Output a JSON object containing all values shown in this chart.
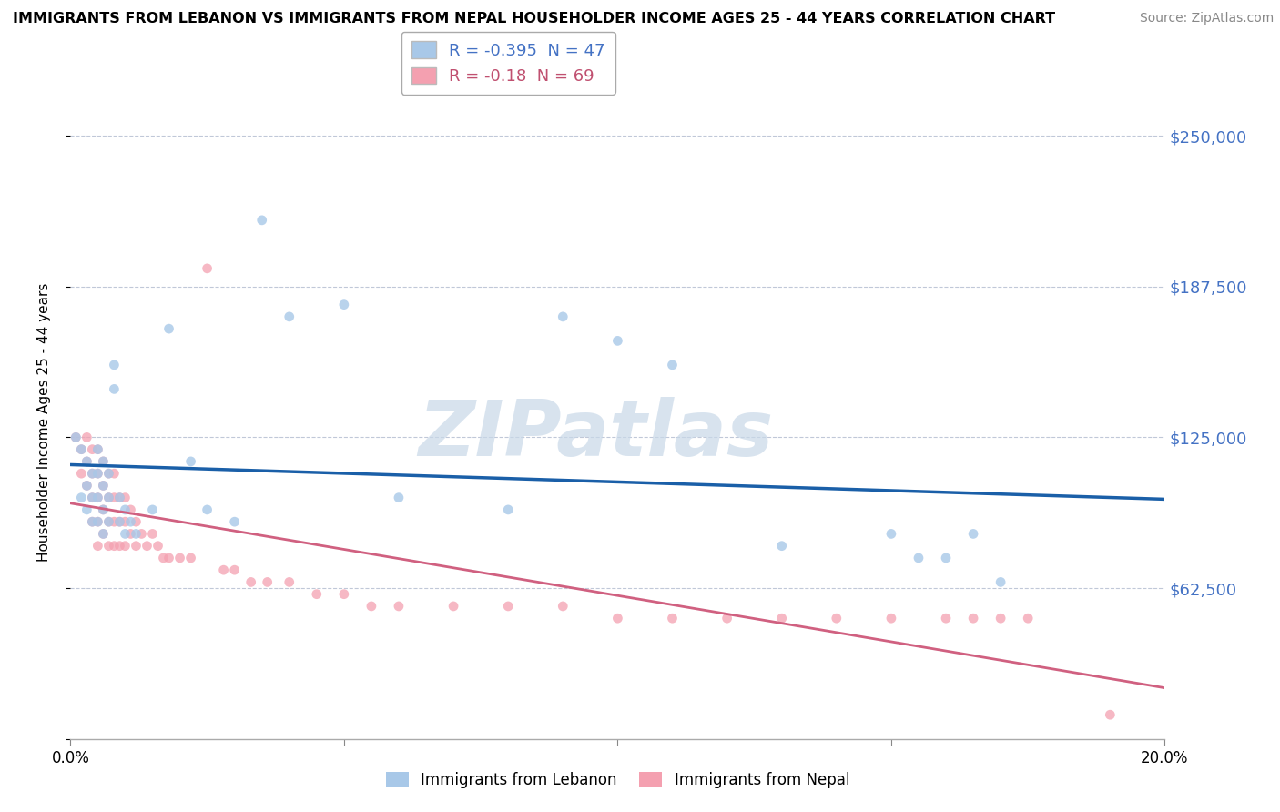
{
  "title": "IMMIGRANTS FROM LEBANON VS IMMIGRANTS FROM NEPAL HOUSEHOLDER INCOME AGES 25 - 44 YEARS CORRELATION CHART",
  "source": "Source: ZipAtlas.com",
  "ylabel": "Householder Income Ages 25 - 44 years",
  "xlim": [
    0,
    0.2
  ],
  "ylim": [
    0,
    262500
  ],
  "yticks": [
    0,
    62500,
    125000,
    187500,
    250000
  ],
  "ytick_labels": [
    "",
    "$62,500",
    "$125,000",
    "$187,500",
    "$250,000"
  ],
  "xticks": [
    0.0,
    0.05,
    0.1,
    0.15,
    0.2
  ],
  "xtick_labels": [
    "0.0%",
    "",
    "",
    "",
    "20.0%"
  ],
  "lebanon_color": "#a8c8e8",
  "nepal_color": "#f4a0b0",
  "lebanon_line_color": "#1a5fa8",
  "nepal_line_color": "#d06080",
  "nepal_line_dash": [
    6,
    4
  ],
  "watermark_text": "ZIPatlas",
  "watermark_color": "#c8d8e8",
  "lebanon_R": -0.395,
  "lebanon_N": 47,
  "nepal_R": -0.18,
  "nepal_N": 69,
  "lebanon_x": [
    0.001,
    0.002,
    0.002,
    0.003,
    0.003,
    0.003,
    0.004,
    0.004,
    0.004,
    0.005,
    0.005,
    0.005,
    0.005,
    0.006,
    0.006,
    0.006,
    0.006,
    0.007,
    0.007,
    0.007,
    0.008,
    0.008,
    0.009,
    0.009,
    0.01,
    0.01,
    0.011,
    0.012,
    0.015,
    0.018,
    0.022,
    0.025,
    0.03,
    0.035,
    0.04,
    0.05,
    0.06,
    0.08,
    0.09,
    0.1,
    0.11,
    0.13,
    0.15,
    0.155,
    0.16,
    0.165,
    0.17
  ],
  "lebanon_y": [
    125000,
    120000,
    100000,
    115000,
    105000,
    95000,
    110000,
    100000,
    90000,
    120000,
    110000,
    100000,
    90000,
    115000,
    105000,
    95000,
    85000,
    110000,
    100000,
    90000,
    155000,
    145000,
    100000,
    90000,
    95000,
    85000,
    90000,
    85000,
    95000,
    170000,
    115000,
    95000,
    90000,
    215000,
    175000,
    180000,
    100000,
    95000,
    175000,
    165000,
    155000,
    80000,
    85000,
    75000,
    75000,
    85000,
    65000
  ],
  "nepal_x": [
    0.001,
    0.002,
    0.002,
    0.003,
    0.003,
    0.003,
    0.004,
    0.004,
    0.004,
    0.004,
    0.005,
    0.005,
    0.005,
    0.005,
    0.005,
    0.006,
    0.006,
    0.006,
    0.006,
    0.007,
    0.007,
    0.007,
    0.007,
    0.008,
    0.008,
    0.008,
    0.008,
    0.009,
    0.009,
    0.009,
    0.01,
    0.01,
    0.01,
    0.011,
    0.011,
    0.012,
    0.012,
    0.013,
    0.014,
    0.015,
    0.016,
    0.017,
    0.018,
    0.02,
    0.022,
    0.025,
    0.028,
    0.03,
    0.033,
    0.036,
    0.04,
    0.045,
    0.05,
    0.055,
    0.06,
    0.07,
    0.08,
    0.09,
    0.1,
    0.11,
    0.12,
    0.13,
    0.14,
    0.15,
    0.16,
    0.165,
    0.17,
    0.175,
    0.19
  ],
  "nepal_y": [
    125000,
    120000,
    110000,
    125000,
    115000,
    105000,
    120000,
    110000,
    100000,
    90000,
    120000,
    110000,
    100000,
    90000,
    80000,
    115000,
    105000,
    95000,
    85000,
    110000,
    100000,
    90000,
    80000,
    110000,
    100000,
    90000,
    80000,
    100000,
    90000,
    80000,
    100000,
    90000,
    80000,
    95000,
    85000,
    90000,
    80000,
    85000,
    80000,
    85000,
    80000,
    75000,
    75000,
    75000,
    75000,
    195000,
    70000,
    70000,
    65000,
    65000,
    65000,
    60000,
    60000,
    55000,
    55000,
    55000,
    55000,
    55000,
    50000,
    50000,
    50000,
    50000,
    50000,
    50000,
    50000,
    50000,
    50000,
    50000,
    10000
  ]
}
